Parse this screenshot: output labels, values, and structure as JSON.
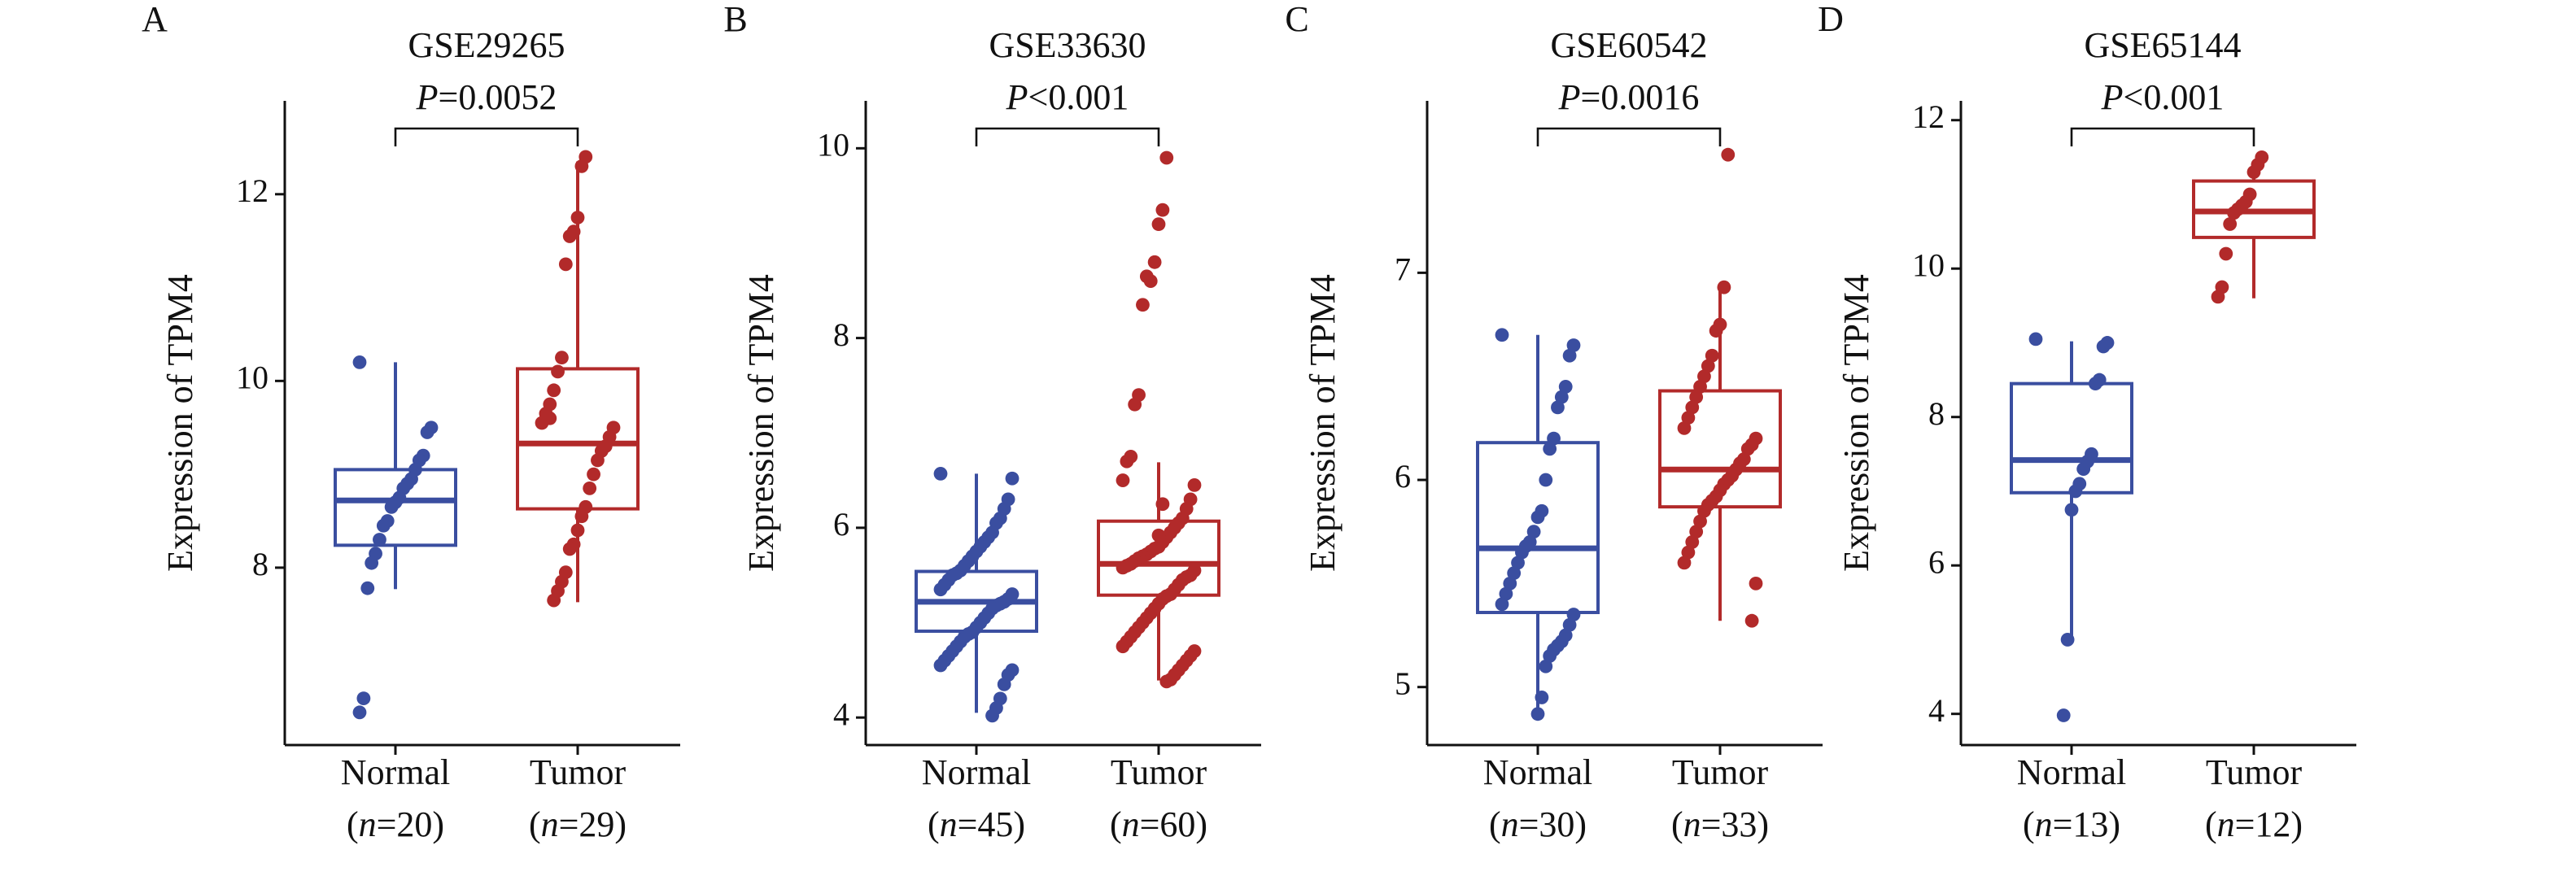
{
  "chart_data": [
    {
      "type": "box",
      "panel_label": "A",
      "title": "GSE29265",
      "annotation": "P=0.0052",
      "ylabel": "Expression of TPM4",
      "categories": [
        "Normal",
        "Tumor"
      ],
      "sample_labels": [
        "(n=20)",
        "(n=29)"
      ],
      "ylim": [
        6.1,
        13.0
      ],
      "yticks": [
        8,
        10,
        12
      ],
      "groups": [
        {
          "color": "#3a4ea0",
          "whisker_low": 7.77,
          "q1": 8.24,
          "median": 8.72,
          "q3": 9.05,
          "whisker_high": 10.2,
          "points": [
            10.2,
            9.5,
            9.45,
            9.2,
            9.15,
            9.05,
            8.95,
            8.9,
            8.85,
            8.75,
            8.7,
            8.65,
            8.5,
            8.45,
            8.3,
            8.15,
            8.05,
            7.78,
            6.6,
            6.45
          ]
        },
        {
          "color": "#b22a2a",
          "whisker_low": 7.63,
          "q1": 8.63,
          "median": 9.33,
          "q3": 10.13,
          "whisker_high": 12.35,
          "points": [
            12.4,
            12.3,
            11.75,
            11.6,
            11.55,
            11.25,
            10.25,
            10.1,
            9.9,
            9.75,
            9.65,
            9.55,
            9.5,
            9.4,
            9.3,
            9.25,
            9.15,
            9.0,
            8.85,
            8.65,
            8.55,
            8.4,
            8.25,
            8.2,
            7.95,
            7.85,
            7.75,
            7.65,
            9.6
          ]
        }
      ]
    },
    {
      "type": "box",
      "panel_label": "B",
      "title": "GSE33630",
      "annotation": "P<0.001",
      "ylabel": "Expression of TPM4",
      "categories": [
        "Normal",
        "Tumor"
      ],
      "sample_labels": [
        "(n=45)",
        "(n=60)"
      ],
      "ylim": [
        3.71,
        10.5
      ],
      "yticks": [
        4,
        6,
        8,
        10
      ],
      "groups": [
        {
          "color": "#3a4ea0",
          "whisker_low": 4.05,
          "q1": 4.91,
          "median": 5.22,
          "q3": 5.54,
          "whisker_high": 6.57,
          "points": [
            6.57,
            6.52,
            6.3,
            6.2,
            6.1,
            6.05,
            5.95,
            5.9,
            5.85,
            5.8,
            5.75,
            5.7,
            5.65,
            5.6,
            5.55,
            5.52,
            5.5,
            5.45,
            5.4,
            5.35,
            5.3,
            5.25,
            5.22,
            5.2,
            5.18,
            5.15,
            5.1,
            5.05,
            5.0,
            4.95,
            4.9,
            4.88,
            4.85,
            4.8,
            4.75,
            4.7,
            4.65,
            4.6,
            4.55,
            4.5,
            4.45,
            4.35,
            4.2,
            4.1,
            4.02
          ]
        },
        {
          "color": "#b22a2a",
          "whisker_low": 4.39,
          "q1": 5.29,
          "median": 5.62,
          "q3": 6.07,
          "whisker_high": 6.69,
          "points": [
            9.9,
            9.35,
            9.2,
            8.8,
            8.6,
            8.65,
            8.35,
            7.4,
            7.3,
            6.75,
            6.7,
            6.5,
            6.45,
            6.3,
            6.2,
            6.1,
            6.05,
            6.0,
            5.95,
            5.9,
            5.85,
            5.8,
            5.78,
            5.75,
            5.72,
            5.7,
            5.68,
            5.65,
            5.62,
            5.6,
            5.58,
            5.55,
            5.5,
            5.48,
            5.45,
            5.4,
            5.35,
            5.3,
            5.28,
            5.25,
            5.2,
            5.15,
            5.1,
            5.05,
            5.0,
            4.95,
            4.9,
            4.85,
            4.8,
            4.75,
            4.7,
            4.65,
            4.6,
            4.55,
            4.5,
            4.45,
            4.4,
            4.38,
            6.25,
            5.92
          ]
        }
      ]
    },
    {
      "type": "box",
      "panel_label": "C",
      "title": "GSE60542",
      "annotation": "P=0.0016",
      "ylabel": "Expression of TPM4",
      "categories": [
        "Normal",
        "Tumor"
      ],
      "sample_labels": [
        "(n=30)",
        "(n=33)"
      ],
      "ylim": [
        4.72,
        7.83
      ],
      "yticks": [
        5,
        6,
        7
      ],
      "groups": [
        {
          "color": "#3a4ea0",
          "whisker_low": 4.87,
          "q1": 5.36,
          "median": 5.67,
          "q3": 6.18,
          "whisker_high": 6.7,
          "points": [
            6.7,
            6.65,
            6.6,
            6.45,
            6.4,
            6.35,
            6.2,
            6.15,
            6.0,
            5.85,
            5.82,
            5.75,
            5.7,
            5.68,
            5.65,
            5.6,
            5.55,
            5.5,
            5.45,
            5.4,
            5.35,
            5.3,
            5.25,
            5.22,
            5.2,
            5.18,
            5.15,
            5.1,
            4.95,
            4.87
          ]
        },
        {
          "color": "#b22a2a",
          "whisker_low": 5.32,
          "q1": 5.87,
          "median": 6.05,
          "q3": 6.43,
          "whisker_high": 6.93,
          "points": [
            7.57,
            6.93,
            6.75,
            6.72,
            6.6,
            6.55,
            6.5,
            6.45,
            6.4,
            6.35,
            6.3,
            6.25,
            6.2,
            6.17,
            6.15,
            6.1,
            6.08,
            6.05,
            6.02,
            6.0,
            5.98,
            5.95,
            5.92,
            5.9,
            5.88,
            5.85,
            5.8,
            5.75,
            5.7,
            5.65,
            5.6,
            5.5,
            5.32
          ]
        }
      ]
    },
    {
      "type": "box",
      "panel_label": "D",
      "title": "GSE65144",
      "annotation": "P<0.001",
      "ylabel": "Expression of TPM4",
      "categories": [
        "Normal",
        "Tumor"
      ],
      "sample_labels": [
        "(n=13)",
        "(n=12)"
      ],
      "ylim": [
        3.58,
        12.26
      ],
      "yticks": [
        4,
        6,
        8,
        10,
        12
      ],
      "groups": [
        {
          "color": "#3a4ea0",
          "whisker_low": 5.0,
          "q1": 6.98,
          "median": 7.42,
          "q3": 8.45,
          "whisker_high": 9.02,
          "points": [
            9.05,
            9.0,
            8.95,
            8.5,
            8.45,
            7.5,
            7.4,
            7.3,
            7.1,
            7.0,
            6.75,
            5.0,
            3.98
          ]
        },
        {
          "color": "#b22a2a",
          "whisker_low": 9.6,
          "q1": 10.42,
          "median": 10.77,
          "q3": 11.18,
          "whisker_high": 11.45,
          "points": [
            11.5,
            11.4,
            11.3,
            11.0,
            10.9,
            10.85,
            10.8,
            10.75,
            10.6,
            10.2,
            9.75,
            9.62
          ]
        }
      ]
    }
  ]
}
